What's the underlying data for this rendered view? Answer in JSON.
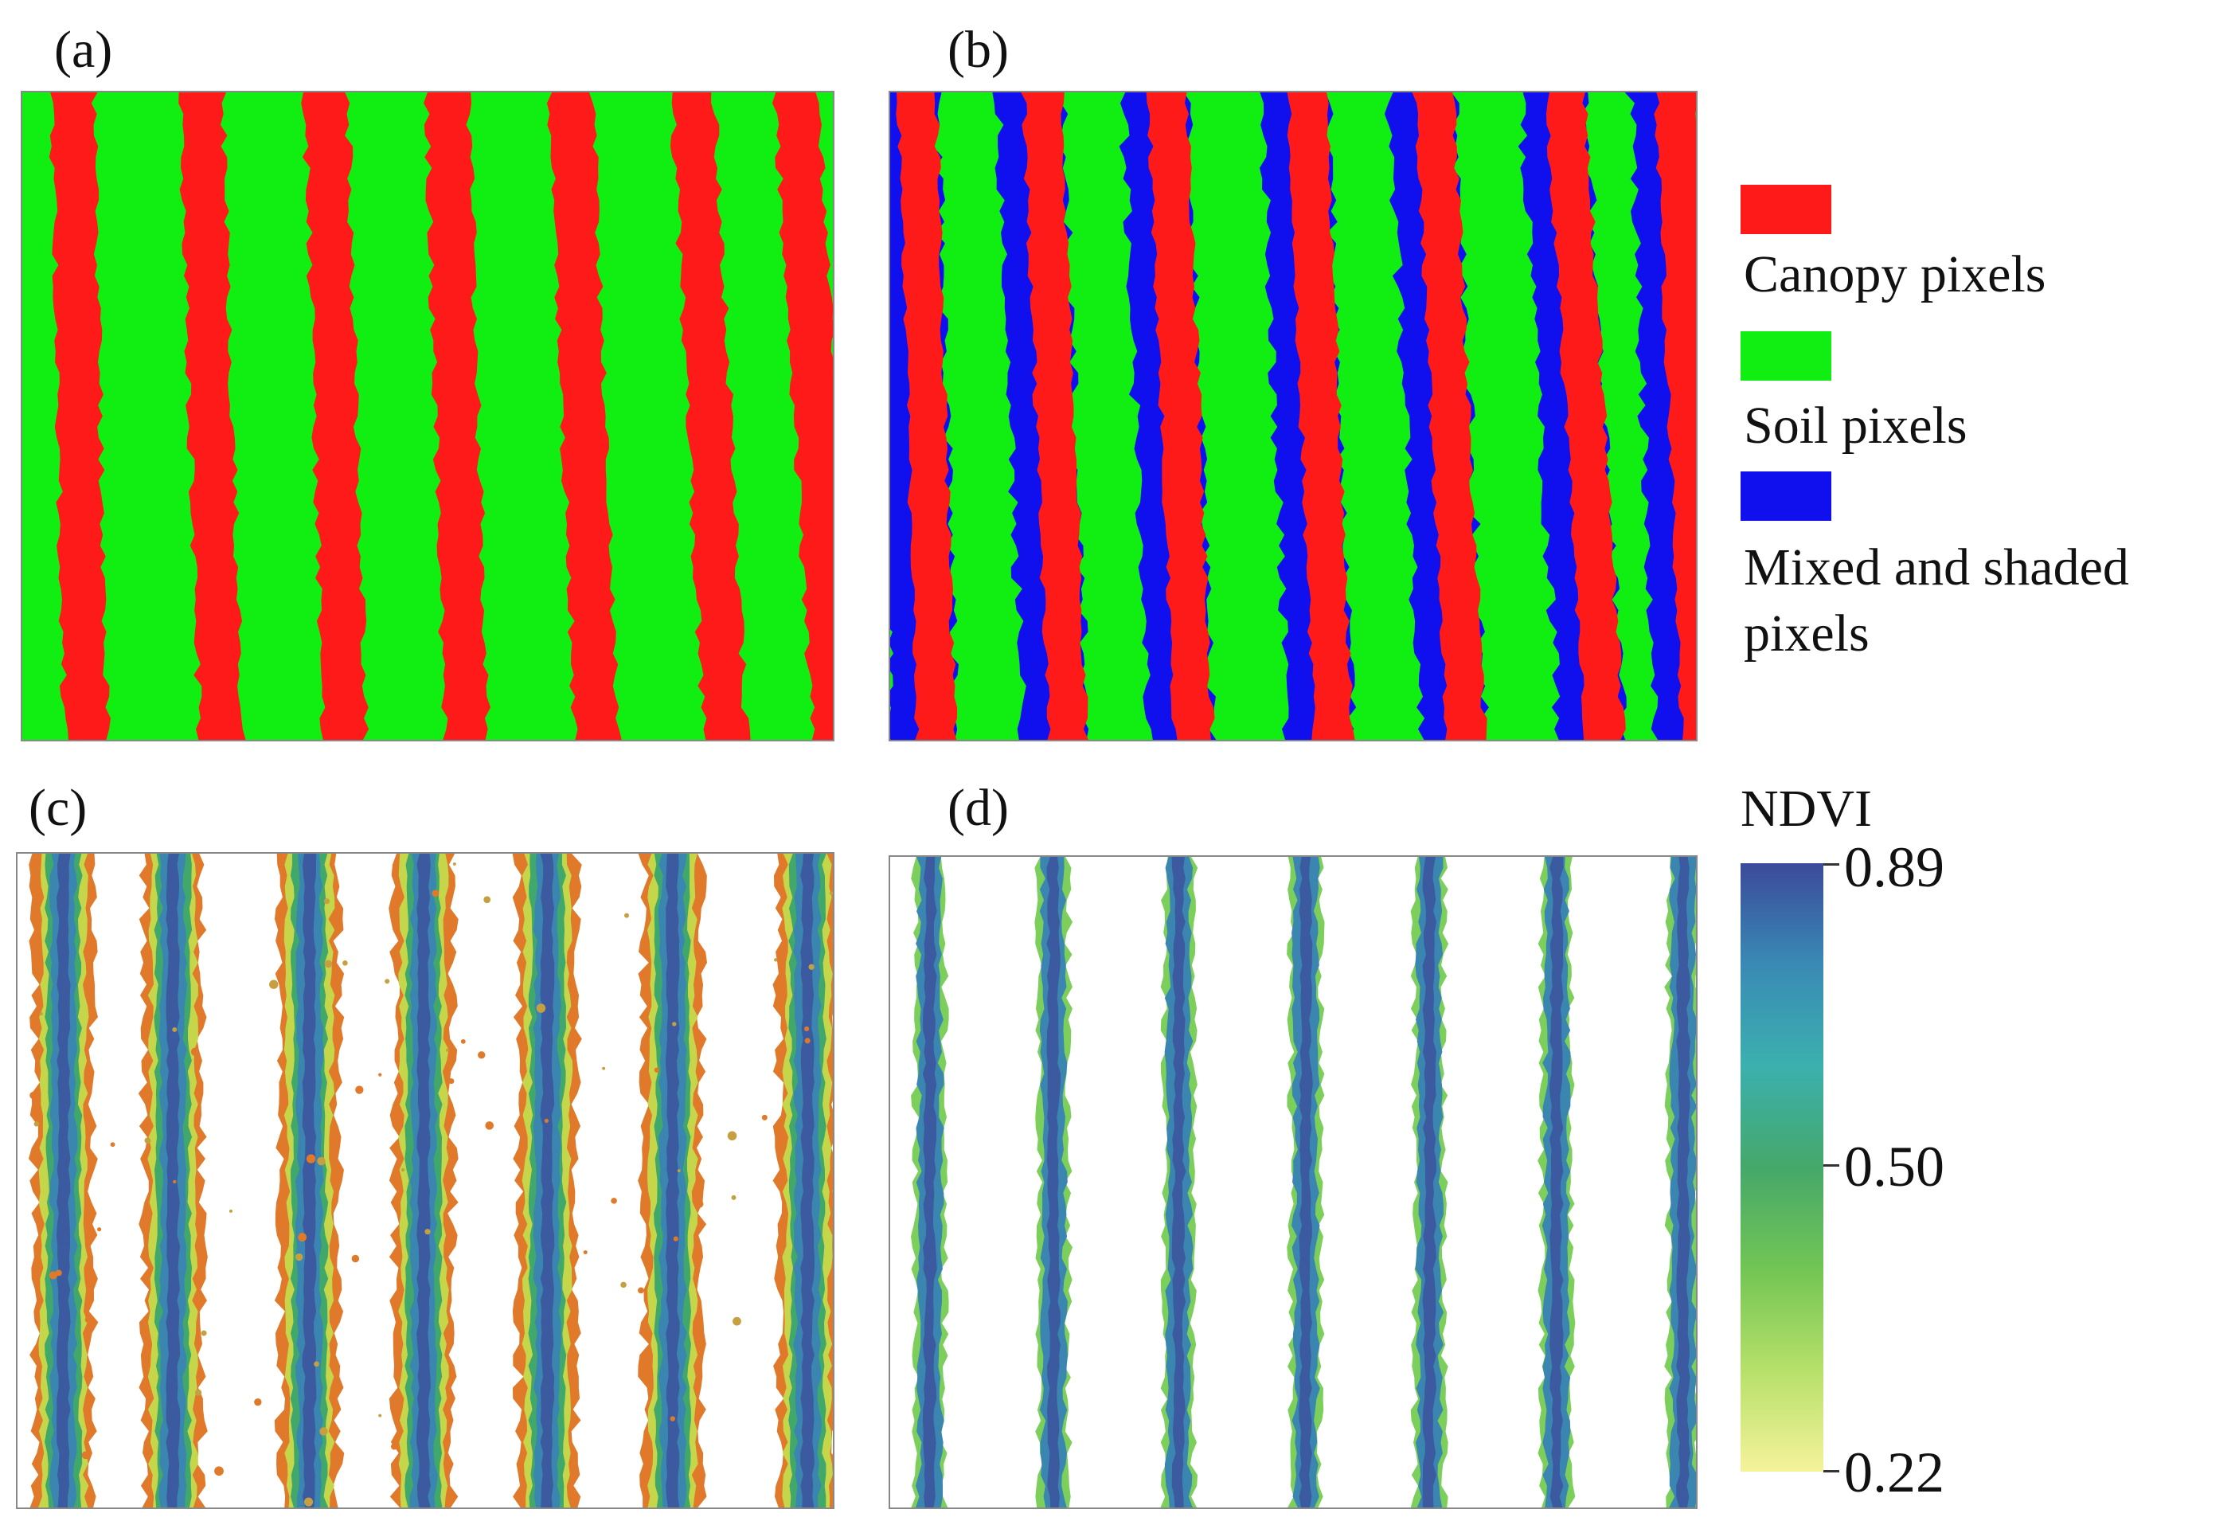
{
  "panels": {
    "a": {
      "label": "(a)"
    },
    "b": {
      "label": "(b)"
    },
    "c": {
      "label": "(c)"
    },
    "d": {
      "label": "(d)"
    }
  },
  "legend": {
    "items": [
      {
        "label": "Canopy pixels",
        "color": "#ff1a1a"
      },
      {
        "label": "Soil pixels",
        "color": "#11ee11"
      },
      {
        "label": "Mixed and shaded pixels",
        "color": "#1010ee"
      }
    ]
  },
  "colorbar": {
    "title": "NDVI",
    "max_label": "0.89",
    "mid_label": "0.50",
    "min_label": "0.22",
    "stops": [
      "#3b4a9a",
      "#3a8ab5",
      "#3bb0ae",
      "#45a86a",
      "#72c554",
      "#b6e06a",
      "#f5f39a"
    ]
  },
  "colors": {
    "canopy": "#ff1a1a",
    "soil": "#11ee11",
    "mixed": "#1010ee"
  }
}
